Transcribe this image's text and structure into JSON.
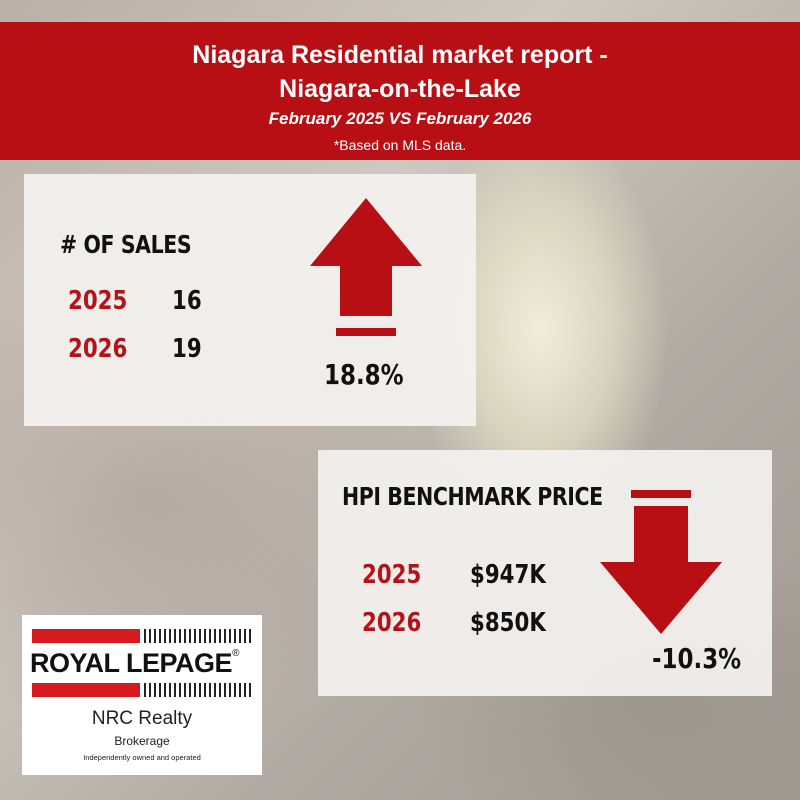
{
  "header": {
    "title_line1": "Niagara Residential market report -",
    "title_line2": "Niagara-on-the-Lake",
    "period": "February 2025 VS February 2026",
    "note": "*Based on MLS data."
  },
  "sales": {
    "heading": "# OF SALES",
    "rows": [
      {
        "year": "2025",
        "value": "16"
      },
      {
        "year": "2026",
        "value": "19"
      }
    ],
    "change": "18.8%",
    "direction": "up-arrow-icon"
  },
  "hpi": {
    "heading": "HPI BENCHMARK PRICE",
    "rows": [
      {
        "year": "2025",
        "value": "$947K"
      },
      {
        "year": "2026",
        "value": "$850K"
      }
    ],
    "change": "-10.3%",
    "direction": "down-arrow-icon"
  },
  "logo": {
    "brand": "ROYAL LEPAGE",
    "office": "NRC Realty",
    "type": "Brokerage",
    "tagline": "Independently owned and operated"
  },
  "colors": {
    "accent_red": "#b80f14",
    "year_red": "#b3141a"
  }
}
